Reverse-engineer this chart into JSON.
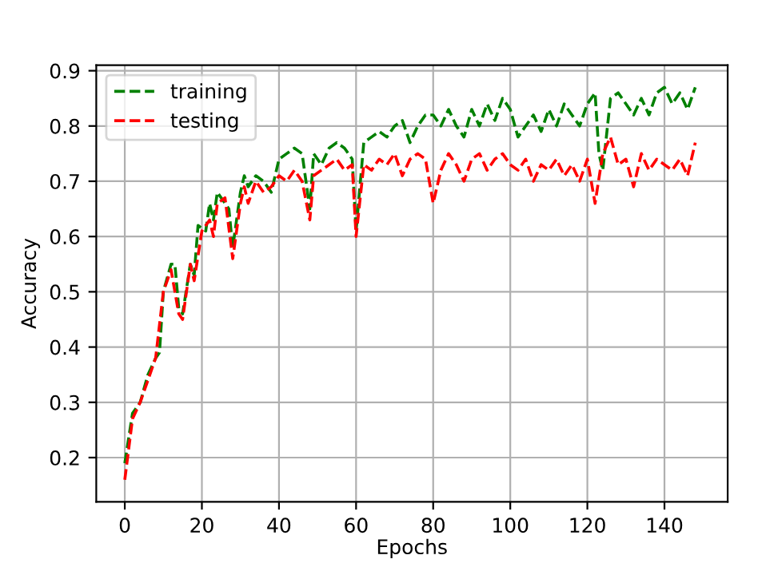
{
  "chart_data": {
    "type": "line",
    "xlabel": "Epochs",
    "ylabel": "Accuracy",
    "xlim": [
      -7.4,
      156.4
    ],
    "ylim": [
      0.12,
      0.91
    ],
    "xticks": [
      0,
      20,
      40,
      60,
      80,
      100,
      120,
      140
    ],
    "yticks": [
      0.2,
      0.3,
      0.4,
      0.5,
      0.6,
      0.7,
      0.8,
      0.9
    ],
    "grid": true,
    "legend": "top left",
    "line_style": "dashed",
    "marker": "none",
    "series": [
      {
        "name": "training",
        "color": "#008000",
        "x": [
          0,
          2,
          4,
          6,
          8,
          9,
          10,
          12,
          13,
          14,
          15,
          17,
          18,
          19,
          21,
          22,
          23,
          24,
          26,
          27,
          28,
          30,
          31,
          32,
          34,
          36,
          38,
          40,
          42,
          44,
          46,
          48,
          49,
          51,
          53,
          55,
          57,
          59,
          60,
          62,
          64,
          66,
          68,
          70,
          72,
          74,
          76,
          78,
          80,
          82,
          84,
          86,
          88,
          90,
          92,
          94,
          96,
          98,
          100,
          102,
          104,
          106,
          108,
          110,
          112,
          114,
          116,
          118,
          120,
          122,
          123,
          124,
          126,
          128,
          130,
          132,
          134,
          136,
          138,
          140,
          142,
          144,
          146,
          148
        ],
        "values": [
          0.19,
          0.28,
          0.3,
          0.35,
          0.38,
          0.39,
          0.5,
          0.55,
          0.55,
          0.47,
          0.46,
          0.55,
          0.53,
          0.62,
          0.61,
          0.66,
          0.63,
          0.68,
          0.66,
          0.65,
          0.58,
          0.68,
          0.71,
          0.69,
          0.71,
          0.7,
          0.68,
          0.74,
          0.75,
          0.76,
          0.75,
          0.65,
          0.75,
          0.73,
          0.76,
          0.77,
          0.76,
          0.74,
          0.61,
          0.77,
          0.78,
          0.79,
          0.78,
          0.8,
          0.81,
          0.77,
          0.8,
          0.82,
          0.82,
          0.8,
          0.83,
          0.8,
          0.78,
          0.83,
          0.8,
          0.84,
          0.81,
          0.85,
          0.83,
          0.78,
          0.8,
          0.82,
          0.79,
          0.83,
          0.8,
          0.84,
          0.82,
          0.8,
          0.84,
          0.86,
          0.75,
          0.72,
          0.85,
          0.86,
          0.84,
          0.82,
          0.85,
          0.82,
          0.86,
          0.87,
          0.84,
          0.86,
          0.83,
          0.87
        ]
      },
      {
        "name": "testing",
        "color": "#ff0000",
        "x": [
          0,
          2,
          4,
          6,
          8,
          10,
          12,
          14,
          15,
          17,
          18,
          20,
          22,
          23,
          24,
          26,
          28,
          30,
          31,
          32,
          34,
          36,
          38,
          40,
          42,
          44,
          46,
          48,
          49,
          51,
          53,
          55,
          57,
          59,
          60,
          62,
          64,
          66,
          68,
          70,
          72,
          74,
          76,
          78,
          80,
          82,
          84,
          86,
          88,
          90,
          92,
          94,
          96,
          98,
          100,
          102,
          104,
          106,
          108,
          110,
          112,
          114,
          116,
          118,
          120,
          122,
          124,
          126,
          128,
          130,
          132,
          134,
          136,
          138,
          140,
          142,
          144,
          146,
          148
        ],
        "values": [
          0.16,
          0.27,
          0.3,
          0.34,
          0.38,
          0.5,
          0.54,
          0.46,
          0.45,
          0.55,
          0.52,
          0.61,
          0.63,
          0.6,
          0.66,
          0.67,
          0.56,
          0.66,
          0.69,
          0.66,
          0.7,
          0.68,
          0.69,
          0.71,
          0.7,
          0.72,
          0.7,
          0.63,
          0.71,
          0.72,
          0.73,
          0.74,
          0.72,
          0.73,
          0.6,
          0.73,
          0.72,
          0.74,
          0.73,
          0.75,
          0.71,
          0.74,
          0.75,
          0.74,
          0.66,
          0.72,
          0.75,
          0.73,
          0.7,
          0.74,
          0.75,
          0.72,
          0.74,
          0.75,
          0.73,
          0.72,
          0.74,
          0.7,
          0.73,
          0.72,
          0.74,
          0.71,
          0.73,
          0.7,
          0.74,
          0.66,
          0.75,
          0.78,
          0.73,
          0.74,
          0.69,
          0.75,
          0.72,
          0.74,
          0.73,
          0.72,
          0.74,
          0.71,
          0.77
        ]
      }
    ]
  }
}
